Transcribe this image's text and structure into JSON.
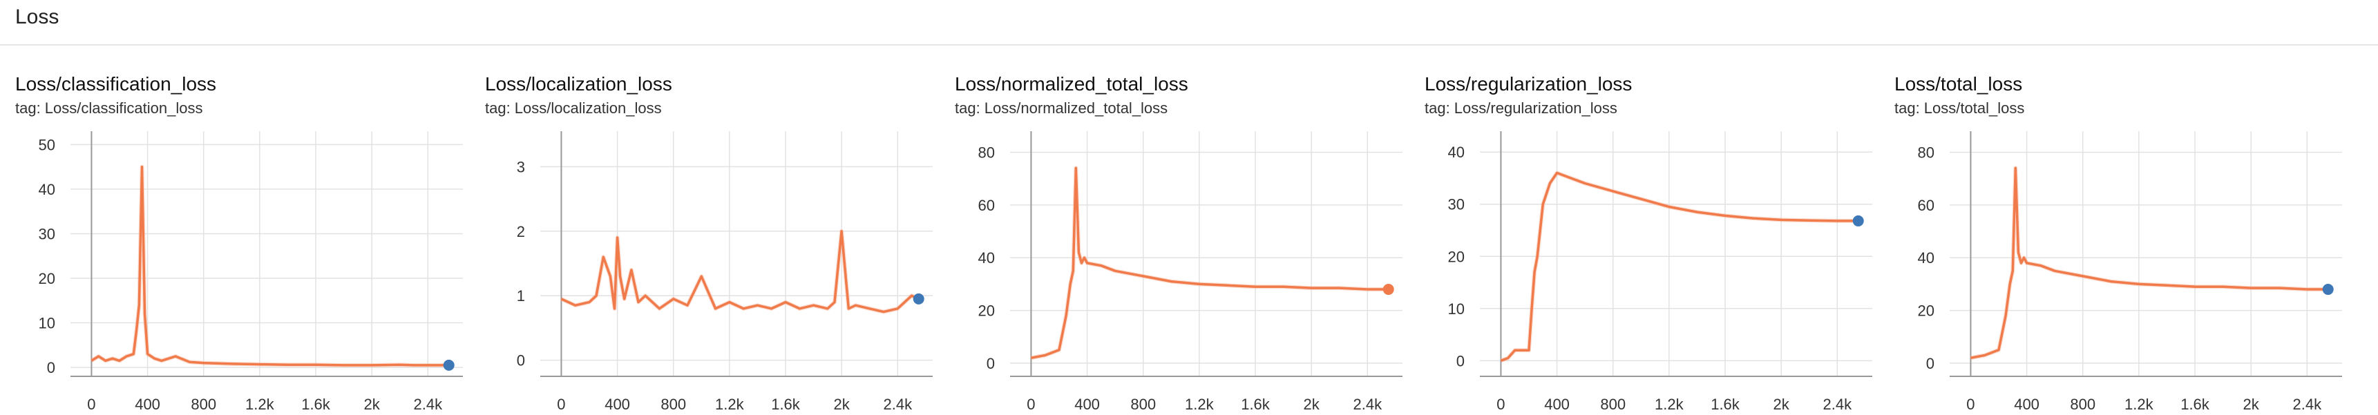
{
  "section": {
    "title": "Loss"
  },
  "colors": {
    "series": "#f07a4a",
    "series_raw": "#f6b49a",
    "grid": "#e2e2e2",
    "axis": "#999999",
    "last_point": "#3e77b6"
  },
  "charts": [
    {
      "title": "Loss/classification_loss",
      "tag": "tag: Loss/classification_loss"
    },
    {
      "title": "Loss/localization_loss",
      "tag": "tag: Loss/localization_loss"
    },
    {
      "title": "Loss/normalized_total_loss",
      "tag": "tag: Loss/normalized_total_loss"
    },
    {
      "title": "Loss/regularization_loss",
      "tag": "tag: Loss/regularization_loss"
    },
    {
      "title": "Loss/total_loss",
      "tag": "tag: Loss/total_loss"
    }
  ],
  "chart_data": [
    {
      "type": "line",
      "title": "Loss/classification_loss",
      "xlim": [
        -150,
        2650
      ],
      "ylim": [
        -2,
        53
      ],
      "xticks": [
        0,
        400,
        800,
        1200,
        1600,
        2000,
        2400
      ],
      "xtick_labels": [
        "0",
        "400",
        "800",
        "1.2k",
        "1.6k",
        "2k",
        "2.4k"
      ],
      "yticks": [
        0,
        10,
        20,
        30,
        40,
        50
      ],
      "ytick_labels": [
        "0",
        "10",
        "20",
        "30",
        "40",
        "50"
      ],
      "last_point_color": "#3e77b6",
      "series": [
        {
          "x": [
            0,
            50,
            100,
            150,
            200,
            250,
            300,
            320,
            340,
            360,
            380,
            400,
            450,
            500,
            600,
            700,
            800,
            1000,
            1200,
            1400,
            1600,
            1800,
            2000,
            2200,
            2300,
            2400,
            2550
          ],
          "y": [
            1.5,
            2.5,
            1.5,
            2.0,
            1.5,
            2.5,
            3.0,
            8,
            14,
            45,
            12,
            3,
            2,
            1.5,
            2.5,
            1.2,
            1.0,
            0.8,
            0.7,
            0.6,
            0.6,
            0.5,
            0.5,
            0.6,
            0.5,
            0.5,
            0.5
          ]
        }
      ]
    },
    {
      "type": "line",
      "title": "Loss/localization_loss",
      "xlim": [
        -150,
        2650
      ],
      "ylim": [
        -0.25,
        3.55
      ],
      "xticks": [
        0,
        400,
        800,
        1200,
        1600,
        2000,
        2400
      ],
      "xtick_labels": [
        "0",
        "400",
        "800",
        "1.2k",
        "1.6k",
        "2k",
        "2.4k"
      ],
      "yticks": [
        0,
        1,
        2,
        3
      ],
      "ytick_labels": [
        "0",
        "1",
        "2",
        "3"
      ],
      "last_point_color": "#3e77b6",
      "series": [
        {
          "x": [
            0,
            100,
            200,
            250,
            300,
            350,
            380,
            400,
            420,
            450,
            500,
            550,
            600,
            700,
            800,
            900,
            1000,
            1100,
            1200,
            1300,
            1400,
            1500,
            1600,
            1700,
            1800,
            1900,
            1950,
            2000,
            2050,
            2100,
            2200,
            2300,
            2400,
            2500,
            2550
          ],
          "y": [
            0.95,
            0.85,
            0.9,
            1.0,
            1.6,
            1.3,
            0.8,
            1.9,
            1.3,
            0.95,
            1.4,
            0.9,
            1.0,
            0.8,
            0.95,
            0.85,
            1.3,
            0.8,
            0.9,
            0.8,
            0.85,
            0.8,
            0.9,
            0.8,
            0.85,
            0.8,
            0.9,
            2.0,
            0.8,
            0.85,
            0.8,
            0.75,
            0.8,
            1.0,
            0.95
          ]
        }
      ]
    },
    {
      "type": "line",
      "title": "Loss/normalized_total_loss",
      "xlim": [
        -150,
        2650
      ],
      "ylim": [
        -5,
        88
      ],
      "xticks": [
        0,
        400,
        800,
        1200,
        1600,
        2000,
        2400
      ],
      "xtick_labels": [
        "0",
        "400",
        "800",
        "1.2k",
        "1.6k",
        "2k",
        "2.4k"
      ],
      "yticks": [
        0,
        20,
        40,
        60,
        80
      ],
      "ytick_labels": [
        "0",
        "20",
        "40",
        "60",
        "80"
      ],
      "last_point_color": "#f07a4a",
      "series": [
        {
          "x": [
            0,
            100,
            200,
            250,
            280,
            300,
            320,
            340,
            360,
            380,
            400,
            500,
            600,
            800,
            1000,
            1200,
            1400,
            1600,
            1800,
            2000,
            2200,
            2400,
            2550
          ],
          "y": [
            2,
            3,
            5,
            18,
            30,
            35,
            74,
            42,
            38,
            40,
            38,
            37,
            35,
            33,
            31,
            30,
            29.5,
            29,
            29,
            28.5,
            28.5,
            28,
            28
          ]
        }
      ]
    },
    {
      "type": "line",
      "title": "Loss/regularization_loss",
      "xlim": [
        -150,
        2650
      ],
      "ylim": [
        -3,
        44
      ],
      "xticks": [
        0,
        400,
        800,
        1200,
        1600,
        2000,
        2400
      ],
      "xtick_labels": [
        "0",
        "400",
        "800",
        "1.2k",
        "1.6k",
        "2k",
        "2.4k"
      ],
      "yticks": [
        0,
        10,
        20,
        30,
        40
      ],
      "ytick_labels": [
        "0",
        "10",
        "20",
        "30",
        "40"
      ],
      "last_point_color": "#3e77b6",
      "series": [
        {
          "x": [
            0,
            50,
            100,
            150,
            200,
            220,
            240,
            260,
            300,
            350,
            400,
            500,
            600,
            800,
            1000,
            1200,
            1400,
            1600,
            1800,
            2000,
            2200,
            2400,
            2550
          ],
          "y": [
            0,
            0.5,
            2,
            2,
            2,
            10,
            17,
            20,
            30,
            34,
            36,
            35,
            34,
            32.5,
            31,
            29.5,
            28.5,
            27.8,
            27.3,
            27.0,
            26.9,
            26.8,
            26.8
          ]
        }
      ]
    },
    {
      "type": "line",
      "title": "Loss/total_loss",
      "xlim": [
        -150,
        2650
      ],
      "ylim": [
        -5,
        88
      ],
      "xticks": [
        0,
        400,
        800,
        1200,
        1600,
        2000,
        2400
      ],
      "xtick_labels": [
        "0",
        "400",
        "800",
        "1.2k",
        "1.6k",
        "2k",
        "2.4k"
      ],
      "yticks": [
        0,
        20,
        40,
        60,
        80
      ],
      "ytick_labels": [
        "0",
        "20",
        "40",
        "60",
        "80"
      ],
      "last_point_color": "#3e77b6",
      "series": [
        {
          "x": [
            0,
            100,
            200,
            250,
            280,
            300,
            320,
            340,
            360,
            380,
            400,
            500,
            600,
            800,
            1000,
            1200,
            1400,
            1600,
            1800,
            2000,
            2200,
            2400,
            2550
          ],
          "y": [
            2,
            3,
            5,
            18,
            30,
            35,
            74,
            42,
            38,
            40,
            38,
            37,
            35,
            33,
            31,
            30,
            29.5,
            29,
            29,
            28.5,
            28.5,
            28,
            28
          ]
        }
      ]
    }
  ]
}
